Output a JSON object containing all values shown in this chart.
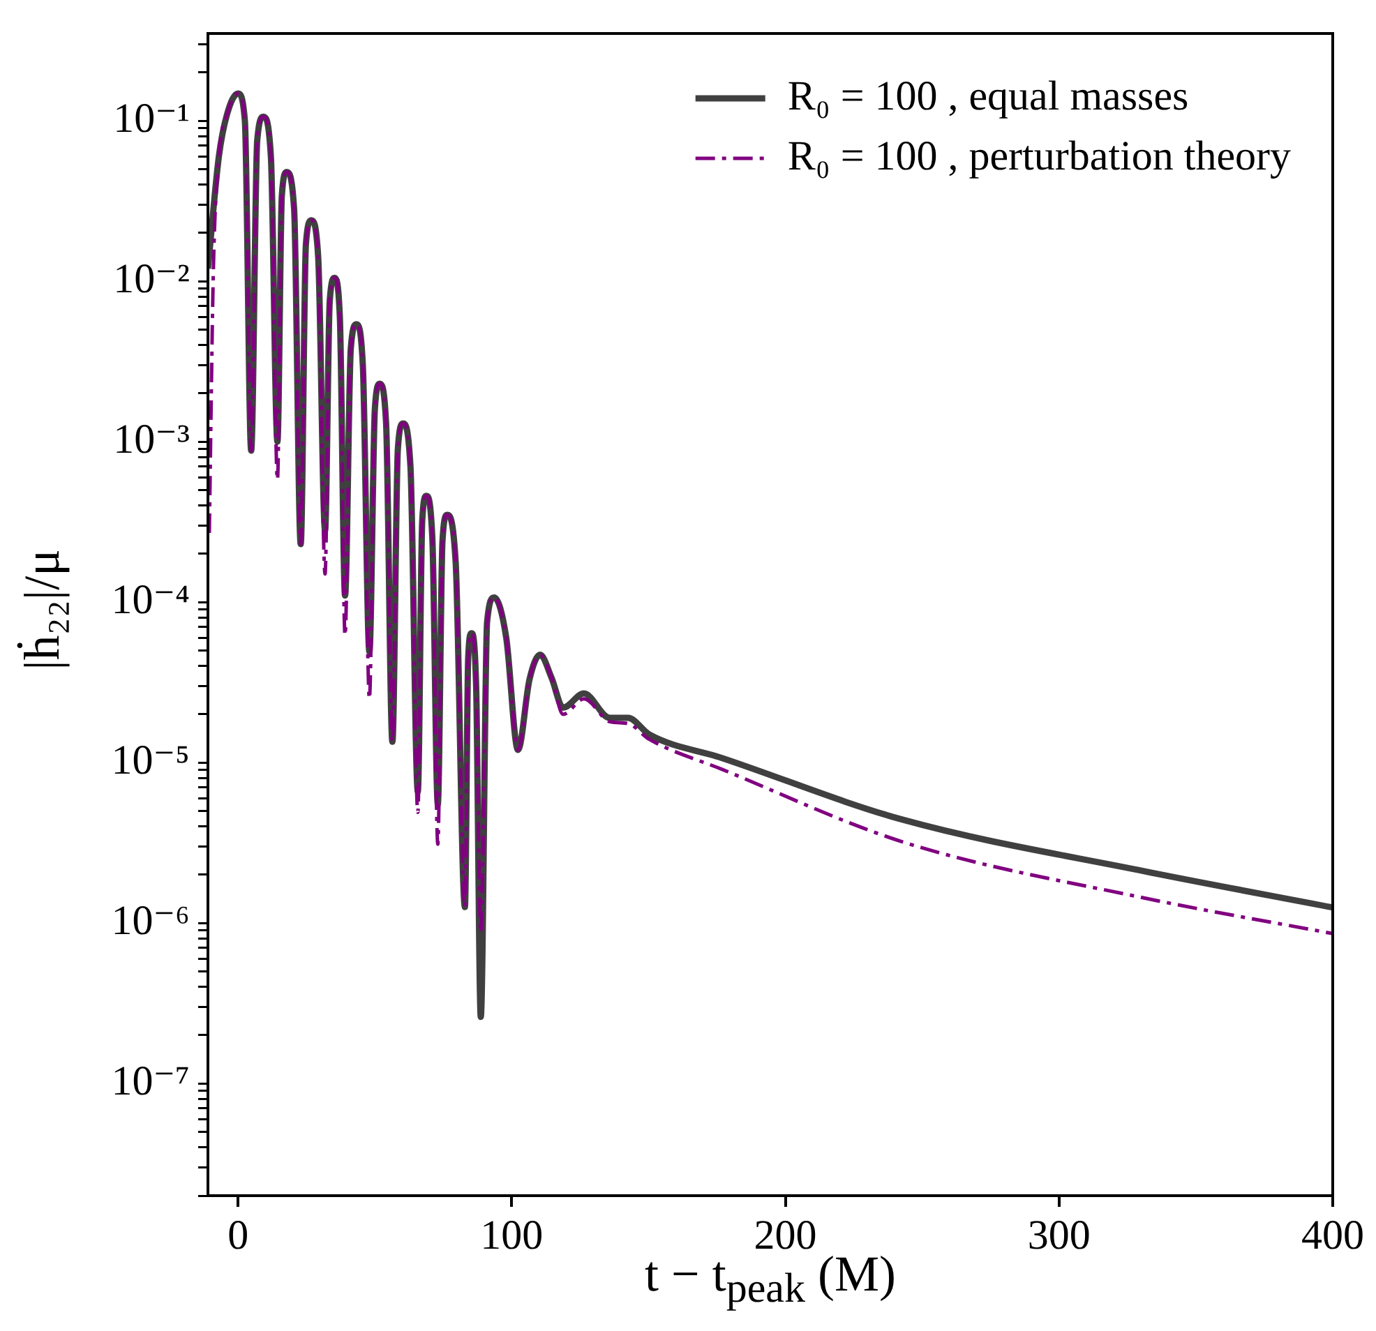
{
  "chart_data": {
    "type": "line",
    "xlabel": "t − t$_{peak}$ (M)",
    "ylabel": "|ḣ₂₂|/μ",
    "log": "y",
    "grid": false,
    "legend": "top right",
    "marker": "none",
    "xlim": [
      -11,
      400
    ],
    "xticks": [
      0,
      100,
      200,
      300,
      400
    ],
    "ylim": [
      2e-08,
      0.35
    ],
    "yticks": [
      {
        "value": 2e-08,
        "label": null
      },
      {
        "value": 3e-08,
        "label": null
      },
      {
        "value": 4e-08,
        "label": null
      },
      {
        "value": 5e-08,
        "label": null
      },
      {
        "value": 6e-08,
        "label": null
      },
      {
        "value": 7e-08,
        "label": null
      },
      {
        "value": 8e-08,
        "label": null
      },
      {
        "value": 9e-08,
        "label": null
      },
      {
        "value": 1e-07,
        "label": "10⁻⁷"
      },
      {
        "value": 2e-07,
        "label": null
      },
      {
        "value": 3e-07,
        "label": null
      },
      {
        "value": 4e-07,
        "label": null
      },
      {
        "value": 5e-07,
        "label": null
      },
      {
        "value": 6e-07,
        "label": null
      },
      {
        "value": 7e-07,
        "label": null
      },
      {
        "value": 8e-07,
        "label": null
      },
      {
        "value": 9e-07,
        "label": null
      },
      {
        "value": 1e-06,
        "label": "10⁻⁶"
      },
      {
        "value": 2e-06,
        "label": null
      },
      {
        "value": 3e-06,
        "label": null
      },
      {
        "value": 4e-06,
        "label": null
      },
      {
        "value": 5e-06,
        "label": null
      },
      {
        "value": 6e-06,
        "label": null
      },
      {
        "value": 7e-06,
        "label": null
      },
      {
        "value": 8e-06,
        "label": null
      },
      {
        "value": 9e-06,
        "label": null
      },
      {
        "value": 1e-05,
        "label": "10⁻⁵"
      },
      {
        "value": 2e-05,
        "label": null
      },
      {
        "value": 3e-05,
        "label": null
      },
      {
        "value": 4e-05,
        "label": null
      },
      {
        "value": 5e-05,
        "label": null
      },
      {
        "value": 6e-05,
        "label": null
      },
      {
        "value": 7e-05,
        "label": null
      },
      {
        "value": 8e-05,
        "label": null
      },
      {
        "value": 9e-05,
        "label": null
      },
      {
        "value": 0.0001,
        "label": "10⁻⁴"
      },
      {
        "value": 0.0002,
        "label": null
      },
      {
        "value": 0.0003,
        "label": null
      },
      {
        "value": 0.0004,
        "label": null
      },
      {
        "value": 0.0005,
        "label": null
      },
      {
        "value": 0.0006,
        "label": null
      },
      {
        "value": 0.0007,
        "label": null
      },
      {
        "value": 0.0008,
        "label": null
      },
      {
        "value": 0.0009,
        "label": null
      },
      {
        "value": 0.001,
        "label": "10⁻³"
      },
      {
        "value": 0.002,
        "label": null
      },
      {
        "value": 0.003,
        "label": null
      },
      {
        "value": 0.004,
        "label": null
      },
      {
        "value": 0.005,
        "label": null
      },
      {
        "value": 0.006,
        "label": null
      },
      {
        "value": 0.007,
        "label": null
      },
      {
        "value": 0.008,
        "label": null
      },
      {
        "value": 0.009,
        "label": null
      },
      {
        "value": 0.01,
        "label": "10⁻²"
      },
      {
        "value": 0.02,
        "label": null
      },
      {
        "value": 0.03,
        "label": null
      },
      {
        "value": 0.04,
        "label": null
      },
      {
        "value": 0.05,
        "label": null
      },
      {
        "value": 0.06,
        "label": null
      },
      {
        "value": 0.07,
        "label": null
      },
      {
        "value": 0.08,
        "label": null
      },
      {
        "value": 0.09,
        "label": null
      },
      {
        "value": 0.1,
        "label": "10⁻¹"
      },
      {
        "value": 0.2,
        "label": null
      },
      {
        "value": 0.3,
        "label": null
      }
    ],
    "series": [
      {
        "name": "R₀ = 100 , equal masses",
        "color": "#404040",
        "line_style": "solid",
        "x": [
          -11,
          -7,
          -4,
          0,
          2.5,
          4.8,
          7,
          9.3,
          12,
          14.4,
          16,
          17.8,
          20.5,
          22.9,
          24.8,
          26.8,
          29.3,
          31.8,
          33.5,
          35.3,
          37.2,
          39.1,
          41.2,
          43.3,
          45.6,
          48,
          50,
          51.8,
          54.1,
          56.4,
          58.4,
          60.3,
          63,
          65.7,
          67.3,
          68.8,
          71,
          73,
          74.7,
          76.4,
          79.5,
          82.9,
          84.1,
          85.3,
          87,
          88.7,
          91,
          93.6,
          98,
          102.3,
          106.5,
          110.4,
          114.5,
          118.8,
          126.4,
          135.8,
          142.5,
          150.2,
          176.7,
          243,
          331.4,
          400
        ],
        "values": [
          0.012,
          0.06,
          0.11,
          0.148,
          0.1,
          0.00088,
          0.075,
          0.106,
          0.06,
          0.001,
          0.034,
          0.048,
          0.028,
          0.00023,
          0.017,
          0.024,
          0.014,
          0.00028,
          0.0075,
          0.0105,
          0.006,
          0.00011,
          0.0038,
          0.0054,
          0.003,
          4.9e-05,
          0.0016,
          0.0023,
          0.0013,
          1.35e-05,
          0.0009,
          0.0013,
          0.0007,
          6.6e-06,
          0.00032,
          0.00046,
          0.00025,
          5.5e-06,
          0.00024,
          0.00035,
          0.00018,
          1.26e-06,
          4.5e-05,
          6.4e-05,
          3e-05,
          2.6e-07,
          7.5e-05,
          0.000107,
          6e-05,
          1.2e-05,
          3.3e-05,
          4.7e-05,
          3.4e-05,
          2.2e-05,
          2.7e-05,
          1.9e-05,
          1.9e-05,
          1.5e-05,
          1.07e-05,
          4.4e-06,
          2.1e-06,
          1.25e-06
        ]
      },
      {
        "name": "R₀ = 100 , perturbation theory",
        "color": "#800080",
        "line_style": "dashdot",
        "x": [
          -10.5,
          -9,
          -7,
          -4,
          0,
          2.5,
          4.8,
          7,
          9.3,
          12,
          14.4,
          16,
          17.8,
          20.5,
          22.9,
          24.8,
          26.8,
          29.3,
          31.8,
          33.5,
          35.3,
          37.2,
          39.1,
          41.2,
          43.3,
          45.6,
          48,
          50,
          51.8,
          54.1,
          56.4,
          58.4,
          60.3,
          63,
          65.7,
          67.3,
          68.8,
          71,
          73,
          74.7,
          76.4,
          79.5,
          82.9,
          84.1,
          85.3,
          87,
          88.7,
          91,
          93.6,
          98,
          102.3,
          106.5,
          110.4,
          114.5,
          118.8,
          126.4,
          135.8,
          142.5,
          150.2,
          176.7,
          243,
          331.4,
          400
        ],
        "values": [
          0.00027,
          0.012,
          0.06,
          0.11,
          0.148,
          0.1,
          0.00088,
          0.075,
          0.106,
          0.06,
          0.00058,
          0.034,
          0.048,
          0.028,
          0.00023,
          0.017,
          0.024,
          0.014,
          0.00015,
          0.0075,
          0.0105,
          0.006,
          6.2e-05,
          0.0038,
          0.0054,
          0.003,
          2.5e-05,
          0.0016,
          0.0023,
          0.0013,
          1.35e-05,
          0.0009,
          0.0013,
          0.0007,
          4.9e-06,
          0.00032,
          0.00046,
          0.00025,
          3.1e-06,
          0.00024,
          0.00035,
          0.00018,
          1.26e-06,
          4.5e-05,
          6.4e-05,
          3e-05,
          8.7e-07,
          7.5e-05,
          0.000107,
          6e-05,
          1.2e-05,
          3.3e-05,
          4.7e-05,
          3.4e-05,
          2e-05,
          2.5e-05,
          1.8e-05,
          1.75e-05,
          1.4e-05,
          9.1e-06,
          3.2e-06,
          1.43e-06,
          8.6e-07
        ]
      }
    ]
  }
}
